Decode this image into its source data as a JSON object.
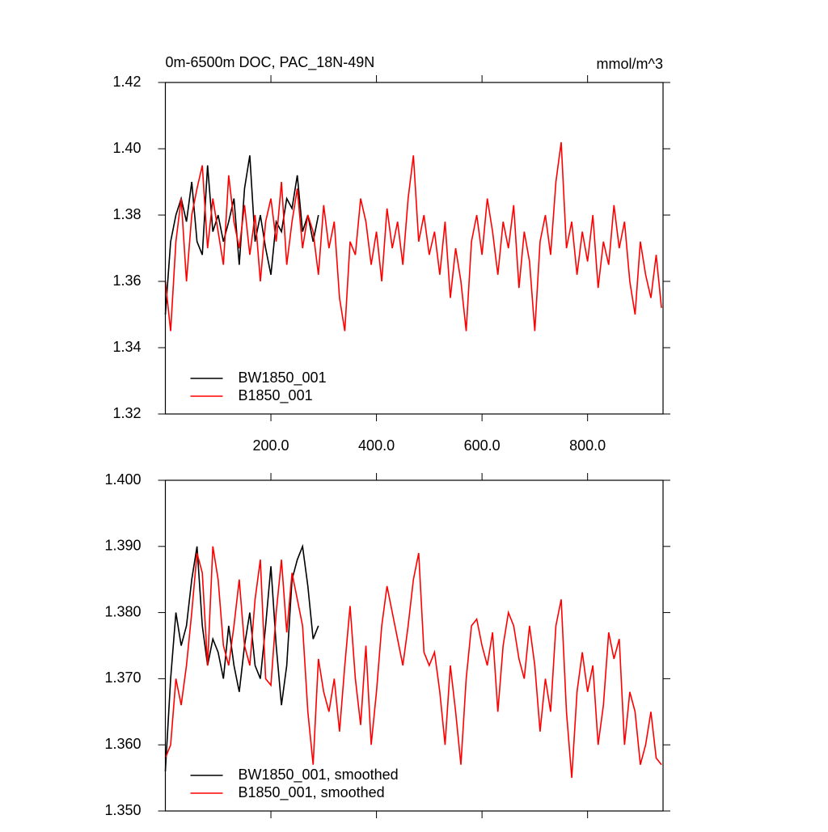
{
  "chart_data": [
    {
      "type": "line",
      "title": "0m-6500m DOC, PAC_18N-49N",
      "units": "mmol/m^3",
      "x": [
        0,
        10,
        20,
        30,
        40,
        50,
        60,
        70,
        80,
        90,
        100,
        110,
        120,
        130,
        140,
        150,
        160,
        170,
        180,
        190,
        200,
        210,
        220,
        230,
        240,
        250,
        260,
        270,
        280,
        290,
        300,
        310,
        320,
        330,
        340,
        350,
        360,
        370,
        380,
        390,
        400,
        410,
        420,
        430,
        440,
        450,
        460,
        470,
        480,
        490,
        500,
        510,
        520,
        530,
        540,
        550,
        560,
        570,
        580,
        590,
        600,
        610,
        620,
        630,
        640,
        650,
        660,
        670,
        680,
        690,
        700,
        710,
        720,
        730,
        740,
        750,
        760,
        770,
        780,
        790,
        800,
        810,
        820,
        830,
        840,
        850,
        860,
        870,
        880,
        890,
        900,
        910,
        920,
        930,
        940
      ],
      "xlim": [
        0,
        943
      ],
      "xticks": [
        {
          "value": 200,
          "label": "200.0"
        },
        {
          "value": 400,
          "label": "400.0"
        },
        {
          "value": 600,
          "label": "600.0"
        },
        {
          "value": 800,
          "label": "800.0"
        }
      ],
      "ylim": [
        1.32,
        1.42
      ],
      "yticks": [
        1.32,
        1.34,
        1.36,
        1.38,
        {
          "value": 1.4,
          "label": "1.40"
        },
        1.42
      ],
      "series": [
        {
          "name": "BW1850_001",
          "color": "#000000",
          "values": [
            1.35,
            1.372,
            1.38,
            1.385,
            1.378,
            1.39,
            1.372,
            1.368,
            1.395,
            1.375,
            1.38,
            1.372,
            1.378,
            1.385,
            1.365,
            1.388,
            1.398,
            1.372,
            1.38,
            1.37,
            1.362,
            1.378,
            1.375,
            1.385,
            1.382,
            1.392,
            1.375,
            1.38,
            1.372,
            1.38,
            null,
            null,
            null,
            null,
            null,
            null,
            null,
            null,
            null,
            null,
            null,
            null,
            null,
            null,
            null,
            null,
            null,
            null,
            null,
            null,
            null,
            null,
            null,
            null,
            null,
            null,
            null,
            null,
            null,
            null,
            null,
            null,
            null,
            null,
            null,
            null,
            null,
            null,
            null,
            null,
            null,
            null,
            null,
            null,
            null,
            null,
            null,
            null,
            null,
            null,
            null,
            null,
            null,
            null,
            null,
            null,
            null,
            null,
            null,
            null,
            null,
            null,
            null,
            null,
            null
          ]
        },
        {
          "name": "B1850_001",
          "color": "#ff0000",
          "values": [
            1.36,
            1.345,
            1.372,
            1.385,
            1.36,
            1.38,
            1.388,
            1.395,
            1.37,
            1.385,
            1.375,
            1.365,
            1.392,
            1.378,
            1.37,
            1.383,
            1.368,
            1.38,
            1.36,
            1.378,
            1.385,
            1.372,
            1.39,
            1.365,
            1.378,
            1.388,
            1.37,
            1.38,
            1.375,
            1.362,
            1.383,
            1.37,
            1.378,
            1.355,
            1.345,
            1.372,
            1.368,
            1.385,
            1.378,
            1.365,
            1.375,
            1.36,
            1.382,
            1.37,
            1.378,
            1.365,
            1.385,
            1.398,
            1.372,
            1.38,
            1.368,
            1.375,
            1.362,
            1.378,
            1.355,
            1.37,
            1.36,
            1.345,
            1.372,
            1.38,
            1.368,
            1.385,
            1.375,
            1.362,
            1.378,
            1.37,
            1.383,
            1.358,
            1.375,
            1.366,
            1.345,
            1.372,
            1.38,
            1.368,
            1.39,
            1.402,
            1.37,
            1.378,
            1.362,
            1.375,
            1.366,
            1.38,
            1.358,
            1.372,
            1.365,
            1.383,
            1.37,
            1.378,
            1.36,
            1.35,
            1.372,
            1.362,
            1.355,
            1.368,
            1.352
          ]
        }
      ]
    },
    {
      "type": "line",
      "x": [
        0,
        10,
        20,
        30,
        40,
        50,
        60,
        70,
        80,
        90,
        100,
        110,
        120,
        130,
        140,
        150,
        160,
        170,
        180,
        190,
        200,
        210,
        220,
        230,
        240,
        250,
        260,
        270,
        280,
        290,
        300,
        310,
        320,
        330,
        340,
        350,
        360,
        370,
        380,
        390,
        400,
        410,
        420,
        430,
        440,
        450,
        460,
        470,
        480,
        490,
        500,
        510,
        520,
        530,
        540,
        550,
        560,
        570,
        580,
        590,
        600,
        610,
        620,
        630,
        640,
        650,
        660,
        670,
        680,
        690,
        700,
        710,
        720,
        730,
        740,
        750,
        760,
        770,
        780,
        790,
        800,
        810,
        820,
        830,
        840,
        850,
        860,
        870,
        880,
        890,
        900,
        910,
        920,
        930,
        940
      ],
      "xlim": [
        0,
        943
      ],
      "xticks": [
        200,
        400,
        600,
        800
      ],
      "ylim": [
        1.35,
        1.4
      ],
      "yticks": [
        {
          "value": 1.35,
          "label": "1.350"
        },
        {
          "value": 1.36,
          "label": "1.360"
        },
        {
          "value": 1.37,
          "label": "1.370"
        },
        {
          "value": 1.38,
          "label": "1.380"
        },
        {
          "value": 1.39,
          "label": "1.390"
        },
        {
          "value": 1.4,
          "label": "1.400"
        }
      ],
      "series": [
        {
          "name": "BW1850_001, smoothed",
          "color": "#000000",
          "values": [
            1.356,
            1.37,
            1.38,
            1.375,
            1.378,
            1.385,
            1.39,
            1.378,
            1.372,
            1.376,
            1.374,
            1.37,
            1.378,
            1.372,
            1.368,
            1.375,
            1.38,
            1.372,
            1.37,
            1.378,
            1.387,
            1.375,
            1.366,
            1.372,
            1.385,
            1.388,
            1.39,
            1.384,
            1.376,
            1.378,
            null,
            null,
            null,
            null,
            null,
            null,
            null,
            null,
            null,
            null,
            null,
            null,
            null,
            null,
            null,
            null,
            null,
            null,
            null,
            null,
            null,
            null,
            null,
            null,
            null,
            null,
            null,
            null,
            null,
            null,
            null,
            null,
            null,
            null,
            null,
            null,
            null,
            null,
            null,
            null,
            null,
            null,
            null,
            null,
            null,
            null,
            null,
            null,
            null,
            null,
            null,
            null,
            null,
            null,
            null,
            null,
            null,
            null,
            null,
            null,
            null,
            null,
            null,
            null,
            null
          ]
        },
        {
          "name": "B1850_001, smoothed",
          "color": "#ff0000",
          "values": [
            1.358,
            1.36,
            1.37,
            1.366,
            1.372,
            1.38,
            1.389,
            1.386,
            1.372,
            1.39,
            1.385,
            1.375,
            1.372,
            1.378,
            1.385,
            1.375,
            1.372,
            1.382,
            1.388,
            1.37,
            1.369,
            1.38,
            1.388,
            1.377,
            1.386,
            1.382,
            1.378,
            1.365,
            1.357,
            1.373,
            1.368,
            1.365,
            1.37,
            1.362,
            1.372,
            1.381,
            1.37,
            1.363,
            1.375,
            1.36,
            1.368,
            1.378,
            1.384,
            1.38,
            1.376,
            1.372,
            1.378,
            1.385,
            1.389,
            1.374,
            1.372,
            1.374,
            1.368,
            1.36,
            1.372,
            1.365,
            1.357,
            1.37,
            1.378,
            1.379,
            1.375,
            1.372,
            1.377,
            1.365,
            1.375,
            1.38,
            1.378,
            1.373,
            1.37,
            1.378,
            1.372,
            1.362,
            1.37,
            1.365,
            1.378,
            1.382,
            1.365,
            1.355,
            1.368,
            1.374,
            1.368,
            1.372,
            1.36,
            1.366,
            1.377,
            1.373,
            1.376,
            1.36,
            1.368,
            1.365,
            1.357,
            1.36,
            1.365,
            1.358,
            1.357
          ]
        }
      ]
    }
  ]
}
